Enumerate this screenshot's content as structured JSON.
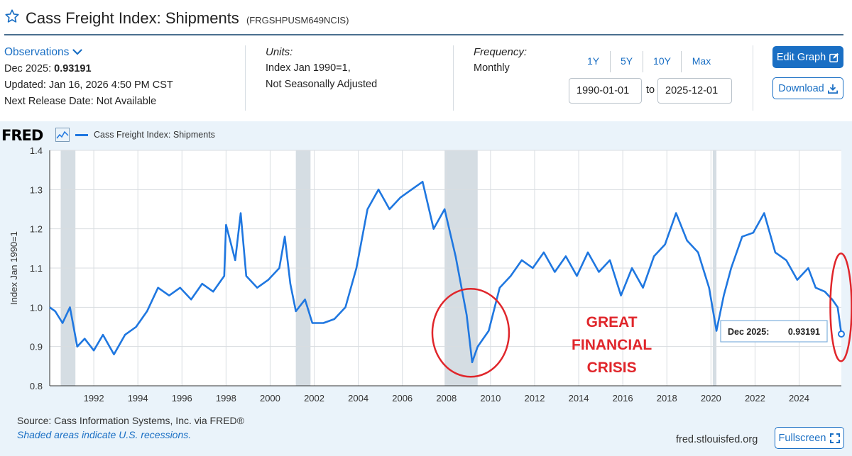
{
  "header": {
    "title": "Cass Freight Index: Shipments",
    "series_id": "(FRGSHPUSM649NCIS)"
  },
  "observations": {
    "link_label": "Observations",
    "latest_prefix": "Dec 2025:",
    "latest_value": "0.93191",
    "updated": "Updated: Jan 16, 2026 4:50 PM CST",
    "next_release": "Next Release Date: Not Available"
  },
  "units": {
    "label": "Units:",
    "line1": "Index Jan 1990=1,",
    "line2": "Not Seasonally Adjusted"
  },
  "frequency": {
    "label": "Frequency:",
    "value": "Monthly"
  },
  "range": {
    "buttons": [
      "1Y",
      "5Y",
      "10Y",
      "Max"
    ],
    "start": "1990-01-01",
    "to_label": "to",
    "end": "2025-12-01"
  },
  "actions": {
    "edit_graph": "Edit Graph",
    "download": "Download",
    "fullscreen": "Fullscreen"
  },
  "branding": {
    "logo": "FRED"
  },
  "footer": {
    "source": "Source: Cass Information Systems, Inc. via FRED®",
    "recession_note": "Shaded areas indicate U.S. recessions.",
    "url": "fred.stlouisfed.org"
  },
  "annotation": {
    "line1": "GREAT",
    "line2": "FINANCIAL",
    "line3": "CRISIS"
  },
  "tooltip": {
    "label": "Dec 2025:",
    "value": "0.93191"
  },
  "colors": {
    "series": "#1f77e0",
    "recession": "#d5dde3",
    "annotation": "#e0262b",
    "accent": "#1a6fc4"
  },
  "icons": [
    "star-icon",
    "chevron-down-icon",
    "pencil-icon",
    "download-icon",
    "fred-chart-icon",
    "fullscreen-icon"
  ],
  "chart_data": {
    "type": "line",
    "legend": "Cass Freight Index: Shipments",
    "legend_position": "top-left",
    "ylabel": "Index Jan 1990=1",
    "ylim": [
      0.8,
      1.4
    ],
    "xlim": [
      "1990-01",
      "2025-12"
    ],
    "yticks": [
      "0.8",
      "0.9",
      "1.0",
      "1.1",
      "1.2",
      "1.3",
      "1.4"
    ],
    "xticks": [
      "1992",
      "1994",
      "1996",
      "1998",
      "2000",
      "2002",
      "2004",
      "2006",
      "2008",
      "2010",
      "2012",
      "2014",
      "2016",
      "2018",
      "2020",
      "2022",
      "2024"
    ],
    "grid": true,
    "recessions": [
      [
        "1990-07",
        "1991-03"
      ],
      [
        "2001-03",
        "2001-11"
      ],
      [
        "2007-12",
        "2009-06"
      ],
      [
        "2020-02",
        "2020-04"
      ]
    ],
    "series": [
      {
        "name": "Cass Freight Index: Shipments",
        "points": [
          [
            "1990-01",
            1.0
          ],
          [
            "1990-04",
            0.99
          ],
          [
            "1990-08",
            0.96
          ],
          [
            "1990-12",
            1.0
          ],
          [
            "1991-04",
            0.9
          ],
          [
            "1991-08",
            0.92
          ],
          [
            "1992-01",
            0.89
          ],
          [
            "1992-06",
            0.93
          ],
          [
            "1992-12",
            0.88
          ],
          [
            "1993-06",
            0.93
          ],
          [
            "1993-12",
            0.95
          ],
          [
            "1994-06",
            0.99
          ],
          [
            "1994-12",
            1.05
          ],
          [
            "1995-06",
            1.03
          ],
          [
            "1995-12",
            1.05
          ],
          [
            "1996-06",
            1.02
          ],
          [
            "1996-12",
            1.06
          ],
          [
            "1997-06",
            1.04
          ],
          [
            "1997-12",
            1.08
          ],
          [
            "1998-01",
            1.21
          ],
          [
            "1998-06",
            1.12
          ],
          [
            "1998-09",
            1.24
          ],
          [
            "1998-12",
            1.08
          ],
          [
            "1999-06",
            1.05
          ],
          [
            "1999-12",
            1.07
          ],
          [
            "2000-06",
            1.1
          ],
          [
            "2000-09",
            1.18
          ],
          [
            "2000-12",
            1.06
          ],
          [
            "2001-03",
            0.99
          ],
          [
            "2001-08",
            1.02
          ],
          [
            "2001-12",
            0.96
          ],
          [
            "2002-06",
            0.96
          ],
          [
            "2002-12",
            0.97
          ],
          [
            "2003-06",
            1.0
          ],
          [
            "2003-12",
            1.1
          ],
          [
            "2004-06",
            1.25
          ],
          [
            "2004-12",
            1.3
          ],
          [
            "2005-06",
            1.25
          ],
          [
            "2005-12",
            1.28
          ],
          [
            "2006-06",
            1.3
          ],
          [
            "2006-12",
            1.32
          ],
          [
            "2007-06",
            1.2
          ],
          [
            "2007-12",
            1.25
          ],
          [
            "2008-06",
            1.13
          ],
          [
            "2008-12",
            0.98
          ],
          [
            "2009-03",
            0.86
          ],
          [
            "2009-06",
            0.9
          ],
          [
            "2009-12",
            0.94
          ],
          [
            "2010-06",
            1.05
          ],
          [
            "2010-12",
            1.08
          ],
          [
            "2011-06",
            1.12
          ],
          [
            "2011-12",
            1.1
          ],
          [
            "2012-06",
            1.14
          ],
          [
            "2012-12",
            1.09
          ],
          [
            "2013-06",
            1.13
          ],
          [
            "2013-12",
            1.08
          ],
          [
            "2014-06",
            1.14
          ],
          [
            "2014-12",
            1.09
          ],
          [
            "2015-06",
            1.12
          ],
          [
            "2015-12",
            1.03
          ],
          [
            "2016-06",
            1.1
          ],
          [
            "2016-12",
            1.05
          ],
          [
            "2017-06",
            1.13
          ],
          [
            "2017-12",
            1.16
          ],
          [
            "2018-06",
            1.24
          ],
          [
            "2018-12",
            1.17
          ],
          [
            "2019-06",
            1.14
          ],
          [
            "2019-12",
            1.05
          ],
          [
            "2020-04",
            0.94
          ],
          [
            "2020-08",
            1.03
          ],
          [
            "2020-12",
            1.1
          ],
          [
            "2021-06",
            1.18
          ],
          [
            "2021-12",
            1.19
          ],
          [
            "2022-06",
            1.24
          ],
          [
            "2022-12",
            1.14
          ],
          [
            "2023-06",
            1.12
          ],
          [
            "2023-12",
            1.07
          ],
          [
            "2024-06",
            1.1
          ],
          [
            "2024-10",
            1.05
          ],
          [
            "2025-03",
            1.04
          ],
          [
            "2025-07",
            1.02
          ],
          [
            "2025-10",
            1.0
          ],
          [
            "2025-12",
            0.93191
          ]
        ]
      }
    ]
  }
}
